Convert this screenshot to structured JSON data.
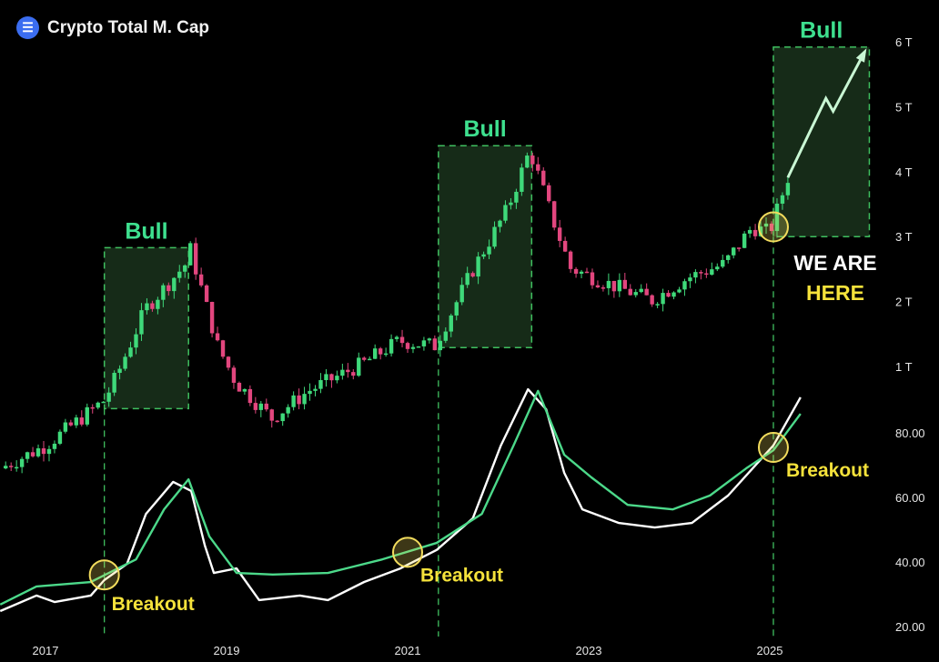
{
  "header": {
    "title": "Crypto Total M. Cap",
    "logo_icon": "crypto-logo-icon"
  },
  "colors": {
    "up": "#3fd97a",
    "down": "#e2467e",
    "bull_text": "#3ee08f",
    "box_fill": "#1a331c",
    "box_border": "#3fbf5f",
    "circle": "#f2dc5d",
    "white_line": "#ffffff",
    "green_line": "#4cd98a",
    "yellow_text": "#f5e23b"
  },
  "chart_data": [
    {
      "type": "candlestick",
      "title": "Crypto Total M. Cap",
      "yaxis_ticks": [
        "1 T",
        "2 T",
        "3 T",
        "4 T",
        "5 T",
        "6 T"
      ],
      "tick_values": [
        1,
        2,
        3,
        4,
        5,
        6
      ],
      "unit": "T (USD trillions, display scale)",
      "price_path": [
        [
          2016.5,
          -0.57
        ],
        [
          2017.0,
          -0.22
        ],
        [
          2017.65,
          0.48
        ],
        [
          2017.8,
          0.9
        ],
        [
          2018.1,
          1.88
        ],
        [
          2018.55,
          2.58
        ],
        [
          2018.6,
          2.8
        ],
        [
          2018.9,
          1.32
        ],
        [
          2019.1,
          0.76
        ],
        [
          2019.5,
          0.2
        ],
        [
          2019.9,
          0.62
        ],
        [
          2020.5,
          1.04
        ],
        [
          2020.9,
          1.39
        ],
        [
          2021.3,
          1.32
        ],
        [
          2021.7,
          2.44
        ],
        [
          2022.1,
          3.42
        ],
        [
          2022.35,
          4.33
        ],
        [
          2022.6,
          3.28
        ],
        [
          2022.8,
          2.51
        ],
        [
          2023.3,
          2.23
        ],
        [
          2023.7,
          2.02
        ],
        [
          2024.1,
          2.37
        ],
        [
          2024.5,
          2.58
        ],
        [
          2024.8,
          3.14
        ],
        [
          2025.0,
          3.07
        ],
        [
          2025.2,
          3.91
        ]
      ],
      "projection": [
        [
          2025.2,
          3.91
        ],
        [
          2025.62,
          5.13
        ],
        [
          2025.7,
          4.93
        ],
        [
          2026.05,
          5.85
        ]
      ],
      "bull_zones": [
        {
          "label": "Bull",
          "start": 2017.65,
          "end": 2018.58,
          "low": 0.35,
          "high": 2.83
        },
        {
          "label": "Bull",
          "start": 2021.34,
          "end": 2022.37,
          "low": 1.29,
          "high": 4.4
        },
        {
          "label": "Bull",
          "start": 2025.04,
          "end": 2026.1,
          "low": 3.0,
          "high": 5.92
        }
      ],
      "annotations": [
        {
          "text_line1": "WE ARE",
          "text_line2": "HERE",
          "x": 2025.04,
          "y": 3.15
        }
      ]
    },
    {
      "type": "line",
      "yaxis_ticks": [
        "20.00",
        "40.00",
        "60.00",
        "80.00"
      ],
      "tick_values": [
        20,
        40,
        60,
        80
      ],
      "xaxis_ticks": [
        "2017",
        "2019",
        "2021",
        "2023",
        "2025"
      ],
      "xtick_values": [
        2017,
        2019,
        2021,
        2023,
        2025
      ],
      "series": [
        {
          "name": "white",
          "points": [
            [
              2016.5,
              24.8
            ],
            [
              2016.9,
              29.6
            ],
            [
              2017.1,
              27.6
            ],
            [
              2017.5,
              29.6
            ],
            [
              2017.65,
              34.4
            ],
            [
              2017.9,
              39.4
            ],
            [
              2018.11,
              54.9
            ],
            [
              2018.41,
              64.8
            ],
            [
              2018.61,
              62.0
            ],
            [
              2018.76,
              45.1
            ],
            [
              2018.86,
              36.6
            ],
            [
              2019.11,
              38.0
            ],
            [
              2019.36,
              28.2
            ],
            [
              2019.81,
              29.6
            ],
            [
              2020.12,
              28.2
            ],
            [
              2020.52,
              33.8
            ],
            [
              2020.92,
              38.0
            ],
            [
              2021.32,
              43.7
            ],
            [
              2021.72,
              53.5
            ],
            [
              2022.03,
              76.1
            ],
            [
              2022.33,
              93.5
            ],
            [
              2022.53,
              87.3
            ],
            [
              2022.73,
              67.6
            ],
            [
              2022.93,
              56.3
            ],
            [
              2023.33,
              52.1
            ],
            [
              2023.73,
              50.7
            ],
            [
              2024.14,
              52.1
            ],
            [
              2024.54,
              60.6
            ],
            [
              2025.04,
              76.1
            ],
            [
              2025.34,
              91.0
            ]
          ]
        },
        {
          "name": "green",
          "points": [
            [
              2016.5,
              26.8
            ],
            [
              2016.9,
              32.4
            ],
            [
              2017.5,
              33.8
            ],
            [
              2017.7,
              36.6
            ],
            [
              2018.0,
              40.8
            ],
            [
              2018.31,
              56.3
            ],
            [
              2018.58,
              65.6
            ],
            [
              2018.81,
              47.9
            ],
            [
              2019.11,
              36.6
            ],
            [
              2019.51,
              36.1
            ],
            [
              2020.12,
              36.6
            ],
            [
              2020.72,
              40.8
            ],
            [
              2021.32,
              45.9
            ],
            [
              2021.82,
              54.9
            ],
            [
              2022.17,
              76.1
            ],
            [
              2022.44,
              93.0
            ],
            [
              2022.73,
              73.2
            ],
            [
              2023.03,
              66.2
            ],
            [
              2023.43,
              57.7
            ],
            [
              2023.93,
              56.3
            ],
            [
              2024.34,
              60.6
            ],
            [
              2024.74,
              69.0
            ],
            [
              2025.04,
              74.6
            ],
            [
              2025.34,
              85.9
            ]
          ]
        }
      ],
      "breakouts": [
        {
          "label": "Breakout",
          "x": 2017.65,
          "y": 36.0
        },
        {
          "label": "Breakout",
          "x": 2021.0,
          "y": 43.0
        },
        {
          "label": "Breakout",
          "x": 2025.04,
          "y": 75.5
        }
      ]
    }
  ]
}
